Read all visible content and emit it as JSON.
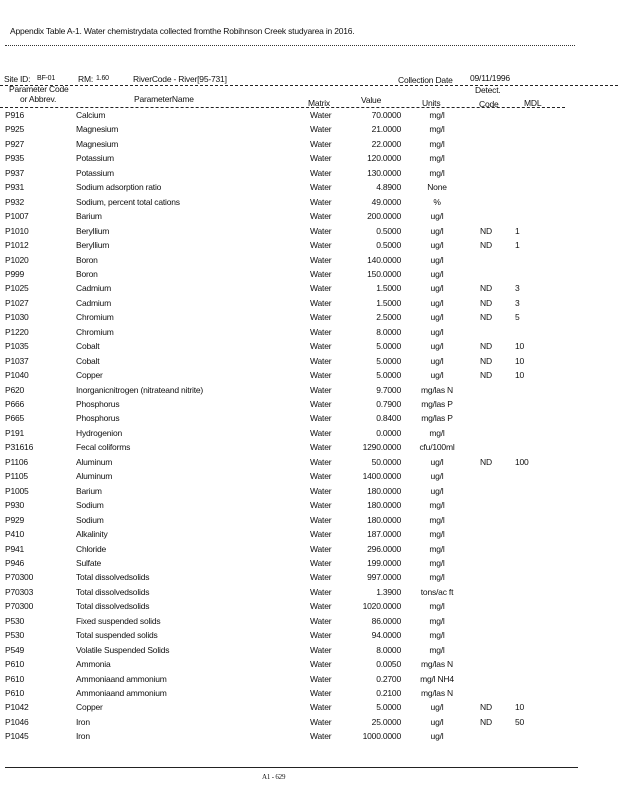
{
  "title": "Appendix Table A-1. Water chemistrydata collected fromthe Robihnson Creek studyarea in 2016.",
  "site": {
    "site_id_label": "Site ID:",
    "site_id": "BF-01",
    "rm_label": "RM:",
    "rm": "1.60",
    "river_code": "RiverCode - River[95-731]",
    "collection_date_label": "Collection Date",
    "collection_date": "09/11/1996"
  },
  "columns": {
    "code_line1": "Parameter Code",
    "code_line2": "or Abbrev.",
    "name": "ParameterName",
    "matrix": "Matrix",
    "value": "Value",
    "units": "Units",
    "detect_line1": "Detect.",
    "detect_line2": "Code",
    "mdl": "MDL"
  },
  "rows": [
    [
      "P916",
      "Calcium",
      "Water",
      "70.0000",
      "mg/l",
      "",
      ""
    ],
    [
      "P925",
      "Magnesium",
      "Water",
      "21.0000",
      "mg/l",
      "",
      ""
    ],
    [
      "P927",
      "Magnesium",
      "Water",
      "22.0000",
      "mg/l",
      "",
      ""
    ],
    [
      "P935",
      "Potassium",
      "Water",
      "120.0000",
      "mg/l",
      "",
      ""
    ],
    [
      "P937",
      "Potassium",
      "Water",
      "130.0000",
      "mg/l",
      "",
      ""
    ],
    [
      "P931",
      "Sodium adsorption ratio",
      "Water",
      "4.8900",
      "None",
      "",
      ""
    ],
    [
      "P932",
      "Sodium, percent total cations",
      "Water",
      "49.0000",
      "%",
      "",
      ""
    ],
    [
      "P1007",
      "Barium",
      "Water",
      "200.0000",
      "ug/l",
      "",
      ""
    ],
    [
      "P1010",
      "Beryllium",
      "Water",
      "0.5000",
      "ug/l",
      "ND",
      "1"
    ],
    [
      "P1012",
      "Beryllium",
      "Water",
      "0.5000",
      "ug/l",
      "ND",
      "1"
    ],
    [
      "P1020",
      "Boron",
      "Water",
      "140.0000",
      "ug/l",
      "",
      ""
    ],
    [
      "P999",
      "Boron",
      "Water",
      "150.0000",
      "ug/l",
      "",
      ""
    ],
    [
      "P1025",
      "Cadmium",
      "Water",
      "1.5000",
      "ug/l",
      "ND",
      "3"
    ],
    [
      "P1027",
      "Cadmium",
      "Water",
      "1.5000",
      "ug/l",
      "ND",
      "3"
    ],
    [
      "P1030",
      "Chromium",
      "Water",
      "2.5000",
      "ug/l",
      "ND",
      "5"
    ],
    [
      "P1220",
      "Chromium",
      "Water",
      "8.0000",
      "ug/l",
      "",
      ""
    ],
    [
      "P1035",
      "Cobalt",
      "Water",
      "5.0000",
      "ug/l",
      "ND",
      "10"
    ],
    [
      "P1037",
      "Cobalt",
      "Water",
      "5.0000",
      "ug/l",
      "ND",
      "10"
    ],
    [
      "P1040",
      "Copper",
      "Water",
      "5.0000",
      "ug/l",
      "ND",
      "10"
    ],
    [
      "P620",
      "Inorganicnitrogen (nitrateand nitrite)",
      "Water",
      "9.7000",
      "mg/las N",
      "",
      ""
    ],
    [
      "P666",
      "Phosphorus",
      "Water",
      "0.7900",
      "mg/las P",
      "",
      ""
    ],
    [
      "P665",
      "Phosphorus",
      "Water",
      "0.8400",
      "mg/las P",
      "",
      ""
    ],
    [
      "P191",
      "Hydrogenion",
      "Water",
      "0.0000",
      "mg/l",
      "",
      ""
    ],
    [
      "P31616",
      "Fecal coliforms",
      "Water",
      "1290.0000",
      "cfu/100ml",
      "",
      ""
    ],
    [
      "P1106",
      "Aluminum",
      "Water",
      "50.0000",
      "ug/l",
      "ND",
      "100"
    ],
    [
      "P1105",
      "Aluminum",
      "Water",
      "1400.0000",
      "ug/l",
      "",
      ""
    ],
    [
      "P1005",
      "Barium",
      "Water",
      "180.0000",
      "ug/l",
      "",
      ""
    ],
    [
      "P930",
      "Sodium",
      "Water",
      "180.0000",
      "mg/l",
      "",
      ""
    ],
    [
      "P929",
      "Sodium",
      "Water",
      "180.0000",
      "mg/l",
      "",
      ""
    ],
    [
      "P410",
      "Alkalinity",
      "Water",
      "187.0000",
      "mg/l",
      "",
      ""
    ],
    [
      "P941",
      "Chloride",
      "Water",
      "296.0000",
      "mg/l",
      "",
      ""
    ],
    [
      "P946",
      "Sulfate",
      "Water",
      "199.0000",
      "mg/l",
      "",
      ""
    ],
    [
      "P70300",
      "Total dissolvedsolids",
      "Water",
      "997.0000",
      "mg/l",
      "",
      ""
    ],
    [
      "P70303",
      "Total dissolvedsolids",
      "Water",
      "1.3900",
      "tons/ac ft",
      "",
      ""
    ],
    [
      "P70300",
      "Total dissolvedsolids",
      "Water",
      "1020.0000",
      "mg/l",
      "",
      ""
    ],
    [
      "P530",
      "Fixed suspended solids",
      "Water",
      "86.0000",
      "mg/l",
      "",
      ""
    ],
    [
      "P530",
      "Total suspended solids",
      "Water",
      "94.0000",
      "mg/l",
      "",
      ""
    ],
    [
      "P549",
      "Volatile Suspended Solids",
      "Water",
      "8.0000",
      "mg/l",
      "",
      ""
    ],
    [
      "P610",
      "Ammonia",
      "Water",
      "0.0050",
      "mg/las N",
      "",
      ""
    ],
    [
      "P610",
      "Ammoniaand ammonium",
      "Water",
      "0.2700",
      "mg/l NH4",
      "",
      ""
    ],
    [
      "P610",
      "Ammoniaand ammonium",
      "Water",
      "0.2100",
      "mg/las N",
      "",
      ""
    ],
    [
      "P1042",
      "Copper",
      "Water",
      "5.0000",
      "ug/l",
      "ND",
      "10"
    ],
    [
      "P1046",
      "Iron",
      "Water",
      "25.0000",
      "ug/l",
      "ND",
      "50"
    ],
    [
      "P1045",
      "Iron",
      "Water",
      "1000.0000",
      "ug/l",
      "",
      ""
    ]
  ],
  "footer": {
    "page_number": "A1 - 629"
  }
}
